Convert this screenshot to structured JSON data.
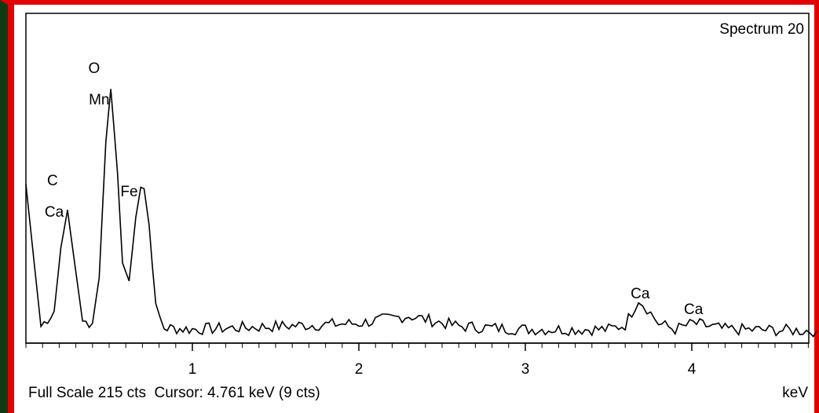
{
  "chart_data": {
    "type": "line",
    "title": "Spectrum 20",
    "xlabel": "keV",
    "ylabel": "",
    "xlim": [
      0.0,
      4.75
    ],
    "ylim": [
      0,
      215
    ],
    "x_ticks": [
      "1",
      "2",
      "3",
      "4"
    ],
    "x_tick_values": [
      1,
      2,
      3,
      4
    ],
    "peaks": [
      {
        "x": 0.0,
        "y": 102
      },
      {
        "x": 0.09,
        "y": 8
      },
      {
        "x": 0.17,
        "y": 18
      },
      {
        "x": 0.21,
        "y": 60
      },
      {
        "x": 0.25,
        "y": 85
      },
      {
        "x": 0.29,
        "y": 52
      },
      {
        "x": 0.34,
        "y": 12
      },
      {
        "x": 0.4,
        "y": 10
      },
      {
        "x": 0.44,
        "y": 40
      },
      {
        "x": 0.48,
        "y": 130
      },
      {
        "x": 0.51,
        "y": 165
      },
      {
        "x": 0.55,
        "y": 110
      },
      {
        "x": 0.58,
        "y": 50
      },
      {
        "x": 0.62,
        "y": 38
      },
      {
        "x": 0.66,
        "y": 80
      },
      {
        "x": 0.69,
        "y": 100
      },
      {
        "x": 0.71,
        "y": 99
      },
      {
        "x": 0.74,
        "y": 75
      },
      {
        "x": 0.78,
        "y": 20
      },
      {
        "x": 0.83,
        "y": 7
      },
      {
        "x": 1.0,
        "y": 6
      },
      {
        "x": 1.5,
        "y": 8
      },
      {
        "x": 2.0,
        "y": 10
      },
      {
        "x": 2.3,
        "y": 15
      },
      {
        "x": 2.6,
        "y": 8
      },
      {
        "x": 3.0,
        "y": 6
      },
      {
        "x": 3.5,
        "y": 6
      },
      {
        "x": 3.6,
        "y": 9
      },
      {
        "x": 3.68,
        "y": 26
      },
      {
        "x": 3.73,
        "y": 20
      },
      {
        "x": 3.8,
        "y": 10
      },
      {
        "x": 3.9,
        "y": 6
      },
      {
        "x": 4.01,
        "y": 10
      },
      {
        "x": 4.2,
        "y": 6
      },
      {
        "x": 4.75,
        "y": 5
      }
    ],
    "annotations": [
      {
        "text": "O",
        "x": 0.41
      },
      {
        "text": "Mn",
        "x": 0.44
      },
      {
        "text": "C",
        "x": 0.16
      },
      {
        "text": "Ca",
        "x": 0.17
      },
      {
        "text": "Fe",
        "x": 0.62
      },
      {
        "text": "Ca",
        "x": 3.69
      },
      {
        "text": "Ca",
        "x": 4.01
      }
    ]
  },
  "status_bar": {
    "text": "Full Scale 215 cts  Cursor: 4.761 keV (9 cts)",
    "unit": "keV"
  }
}
